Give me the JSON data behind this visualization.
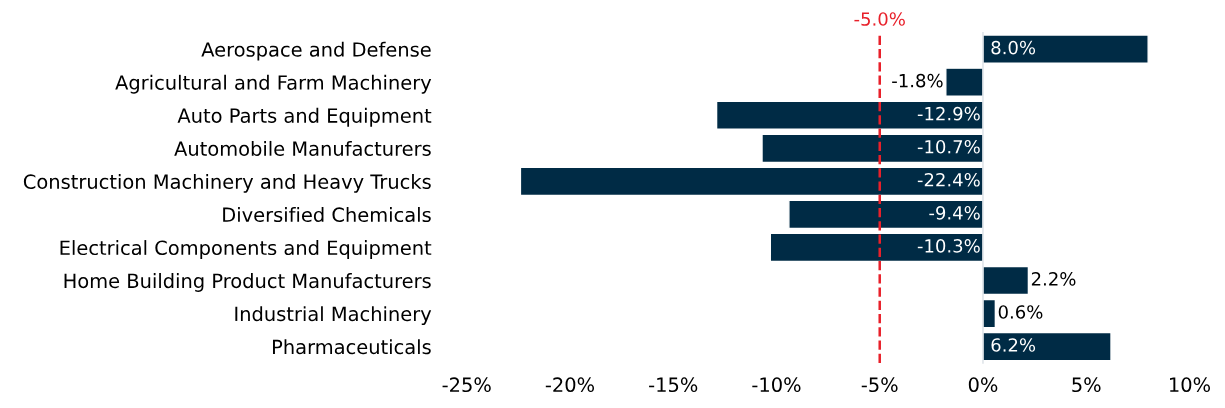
{
  "chart_data": {
    "type": "bar",
    "orientation": "horizontal",
    "categories": [
      "Aerospace and Defense",
      "Agricultural and Farm Machinery",
      "Auto Parts and Equipment",
      "Automobile Manufacturers",
      "Construction Machinery and Heavy Trucks",
      "Diversified Chemicals",
      "Electrical Components and Equipment",
      "Home Building Product Manufacturers",
      "Industrial Machinery",
      "Pharmaceuticals"
    ],
    "values": [
      8.0,
      -1.8,
      -12.9,
      -10.7,
      -22.4,
      -9.4,
      -10.3,
      2.2,
      0.6,
      6.2
    ],
    "value_labels": [
      "8.0%",
      "-1.8%",
      "-12.9%",
      "-10.7%",
      "-22.4%",
      "-9.4%",
      "-10.3%",
      "2.2%",
      "0.6%",
      "6.2%"
    ],
    "color": "#002b45",
    "xlim": [
      -25,
      10
    ],
    "xticks": [
      {
        "value": -25,
        "label": "-25%"
      },
      {
        "value": -20,
        "label": "-20%"
      },
      {
        "value": -15,
        "label": "-15%"
      },
      {
        "value": -10,
        "label": "-10%"
      },
      {
        "value": -5,
        "label": "-5%"
      },
      {
        "value": 0,
        "label": "0%"
      },
      {
        "value": 5,
        "label": "5%"
      },
      {
        "value": 10,
        "label": "10%"
      }
    ],
    "ref_lines": [
      {
        "axis": "x",
        "value": -5.0,
        "label": "-5.0%",
        "color": "#e8202a",
        "line_style": "dashed"
      }
    ],
    "grid": false
  }
}
